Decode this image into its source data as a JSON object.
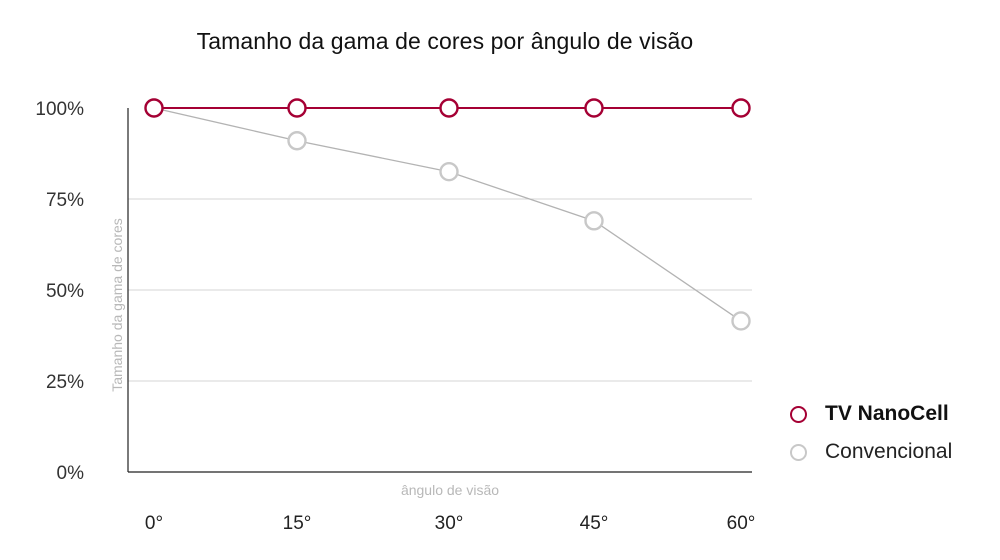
{
  "chart_data": {
    "type": "line",
    "title": "Tamanho da gama de cores por ângulo de visão",
    "xlabel": "ângulo de visão",
    "ylabel": "Tamanho da gama de cores",
    "categories": [
      "0°",
      "15°",
      "30°",
      "45°",
      "60°"
    ],
    "y_ticks": [
      "0%",
      "25%",
      "50%",
      "75%",
      "100%"
    ],
    "ylim": [
      0,
      100
    ],
    "grid": true,
    "legend_position": "right",
    "series": [
      {
        "name": "TV NanoCell",
        "color": "#a50034",
        "values": [
          100,
          100,
          100,
          100,
          100
        ]
      },
      {
        "name": "Convencional",
        "color": "#c8c8c8",
        "values": [
          100,
          91,
          82.5,
          69,
          41.5
        ]
      }
    ]
  }
}
